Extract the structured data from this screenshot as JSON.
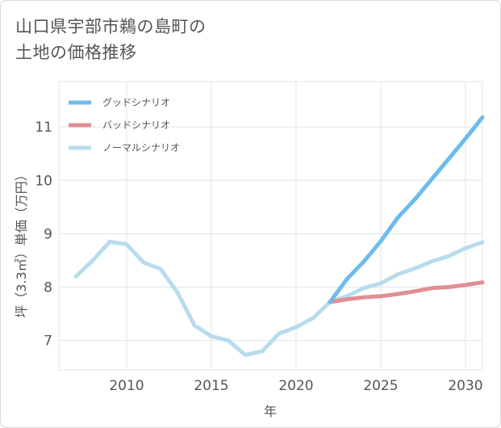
{
  "title_lines": [
    "山口県宇部市鵜の島町の",
    "土地の価格推移"
  ],
  "chart_data": {
    "type": "line",
    "xlabel": "年",
    "ylabel": "坪（3.3㎡）単価（万円）",
    "xlim": [
      2006,
      2031
    ],
    "ylim": [
      6.45,
      11.85
    ],
    "x_ticks": [
      2010,
      2015,
      2020,
      2025,
      2030
    ],
    "y_ticks": [
      7,
      8,
      9,
      10,
      11
    ],
    "grid": true,
    "legend_position": "top-left",
    "series": [
      {
        "name": "グッドシナリオ",
        "color": "#6ebbec",
        "x": [
          2022,
          2023,
          2024,
          2025,
          2026,
          2027,
          2028,
          2029,
          2030,
          2031
        ],
        "y": [
          7.72,
          8.15,
          8.48,
          8.86,
          9.3,
          9.64,
          10.02,
          10.4,
          10.78,
          11.18
        ]
      },
      {
        "name": "バッドシナリオ",
        "color": "#e08e94",
        "x": [
          2022,
          2023,
          2024,
          2025,
          2026,
          2027,
          2028,
          2029,
          2030,
          2031
        ],
        "y": [
          7.72,
          7.77,
          7.81,
          7.83,
          7.87,
          7.92,
          7.98,
          8.0,
          8.04,
          8.09
        ]
      },
      {
        "name": "ノーマルシナリオ",
        "color": "#b9dced",
        "x": [
          2007,
          2008,
          2009,
          2010,
          2011,
          2012,
          2013,
          2014,
          2015,
          2016,
          2017,
          2018,
          2019,
          2020,
          2021,
          2022,
          2023,
          2024,
          2025,
          2026,
          2027,
          2028,
          2029,
          2030,
          2031
        ],
        "y": [
          8.2,
          8.5,
          8.85,
          8.8,
          8.46,
          8.34,
          7.9,
          7.28,
          7.08,
          7.0,
          6.73,
          6.8,
          7.13,
          7.25,
          7.42,
          7.72,
          7.83,
          7.98,
          8.07,
          8.24,
          8.35,
          8.48,
          8.58,
          8.73,
          8.84
        ]
      }
    ]
  }
}
